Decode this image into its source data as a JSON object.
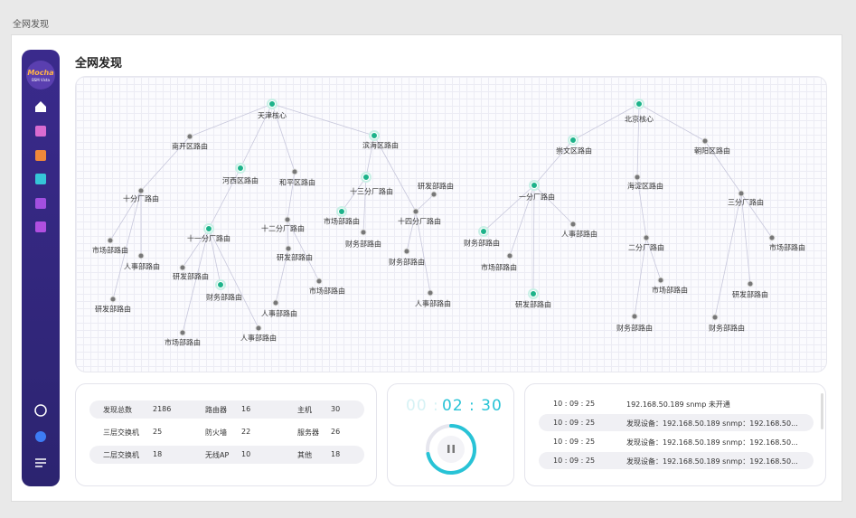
{
  "page": {
    "breadcrumb": "全网发现",
    "title": "全网发现"
  },
  "logo": {
    "text": "Mocha",
    "subtitle": "BSM Vista"
  },
  "topology": {
    "nodes": [
      {
        "label": "天津核心"
      },
      {
        "label": "南开区路由"
      },
      {
        "label": "滨海区路由"
      },
      {
        "label": "河西区路由"
      },
      {
        "label": "和平区路由"
      },
      {
        "label": "十分厂路由"
      },
      {
        "label": "十三分厂路由"
      },
      {
        "label": "研发部路由"
      },
      {
        "label": "市场部路由"
      },
      {
        "label": "十四分厂路由"
      },
      {
        "label": "十二分厂路由"
      },
      {
        "label": "十一分厂路由"
      },
      {
        "label": "财务部路由"
      },
      {
        "label": "市场部路由"
      },
      {
        "label": "人事部路由"
      },
      {
        "label": "研发部路由"
      },
      {
        "label": "研发部路由"
      },
      {
        "label": "财务部路由"
      },
      {
        "label": "财务部路由"
      },
      {
        "label": "市场部路由"
      },
      {
        "label": "研发部路由"
      },
      {
        "label": "人事部路由"
      },
      {
        "label": "人事部路由"
      },
      {
        "label": "人事部路由"
      },
      {
        "label": "市场部路由"
      },
      {
        "label": "北京核心"
      },
      {
        "label": "崇文区路由"
      },
      {
        "label": "朝阳区路由"
      },
      {
        "label": "海淀区路由"
      },
      {
        "label": "一分厂路由"
      },
      {
        "label": "三分厂路由"
      },
      {
        "label": "人事部路由"
      },
      {
        "label": "财务部路由"
      },
      {
        "label": "市场部路由"
      },
      {
        "label": "二分厂路由"
      },
      {
        "label": "市场部路由"
      },
      {
        "label": "市场部路由"
      },
      {
        "label": "研发部路由"
      },
      {
        "label": "研发部路由"
      },
      {
        "label": "财务部路由"
      },
      {
        "label": "财务部路由"
      }
    ]
  },
  "stats": {
    "rows": [
      [
        {
          "label": "发现总数",
          "value": "2186"
        },
        {
          "label": "路由器",
          "value": "16"
        },
        {
          "label": "主机",
          "value": "30"
        }
      ],
      [
        {
          "label": "三层交换机",
          "value": "25"
        },
        {
          "label": "防火墙",
          "value": "22"
        },
        {
          "label": "服务器",
          "value": "26"
        }
      ],
      [
        {
          "label": "二层交换机",
          "value": "18"
        },
        {
          "label": "无线AP",
          "value": "10"
        },
        {
          "label": "其他",
          "value": "18"
        }
      ]
    ]
  },
  "timer": {
    "faded": "00 :",
    "active": "02 : 30"
  },
  "log": {
    "rows": [
      {
        "time": "10 : 09 : 25",
        "message": "192.168.50.189 snmp 未开通"
      },
      {
        "time": "10 : 09 : 25",
        "message": "发现设备：192.168.50.189 snmp：192.168.50..."
      },
      {
        "time": "10 : 09 : 25",
        "message": "发现设备：192.168.50.189 snmp：192.168.50..."
      },
      {
        "time": "10 : 09 : 25",
        "message": "发现设备：192.168.50.189 snmp：192.168.50..."
      }
    ]
  }
}
